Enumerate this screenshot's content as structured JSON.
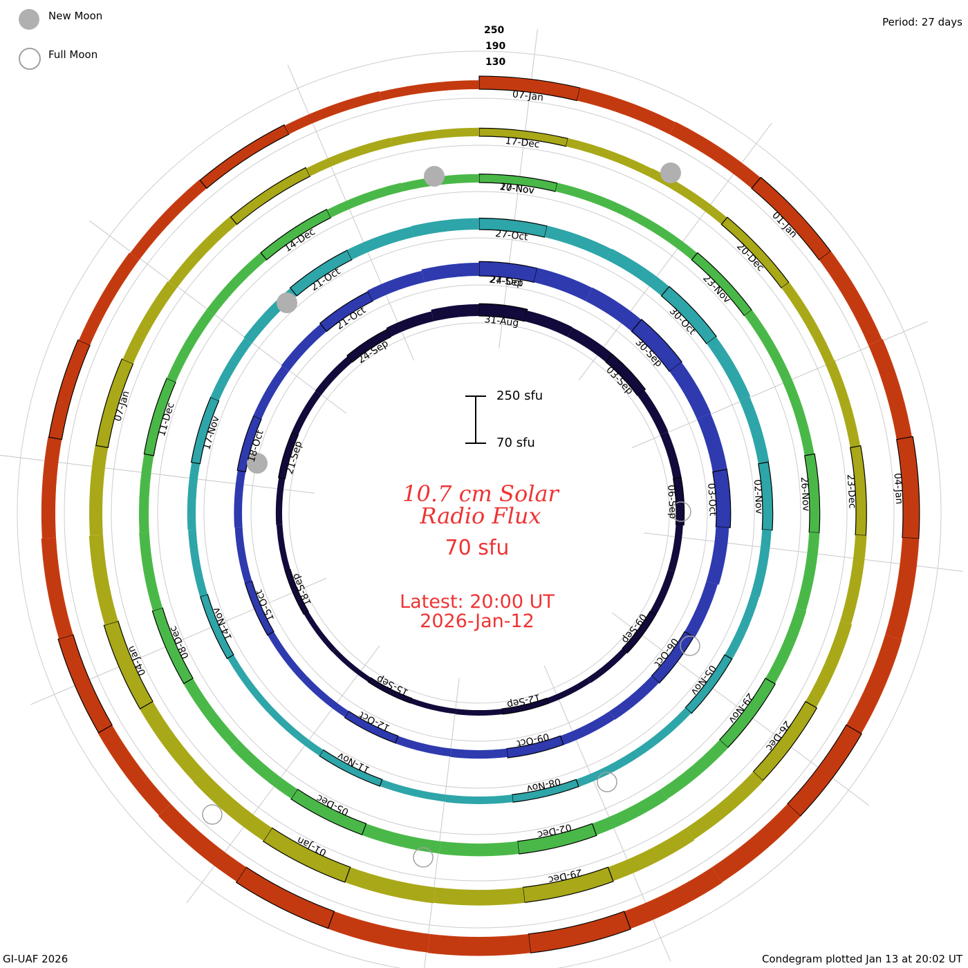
{
  "legend": {
    "new_moon": "New Moon",
    "full_moon": "Full Moon"
  },
  "period_label": "Period: 27 days",
  "ring_scale_labels": [
    "250",
    "190",
    "130"
  ],
  "scale_bar": {
    "top": "250 sfu",
    "bottom": "70 sfu"
  },
  "title": {
    "line1": "10.7 cm Solar",
    "line2": "Radio Flux"
  },
  "current_value": "70 sfu",
  "latest": {
    "line1": "Latest: 20:00 UT",
    "line2": "2026-Jan-12"
  },
  "footer_left": "GI-UAF 2026",
  "footer_right": "Condegram plotted Jan 13 at 20:02 UT",
  "colors": {
    "title_red": "#ee3333",
    "new_moon": "#b0b0b0",
    "full_moon_outline": "#a0a0a0"
  },
  "chart_data": {
    "type": "condegram",
    "period_days": 27,
    "scale_min_sfu": 70,
    "scale_max_sfu": 250,
    "rings": [
      {
        "color": "#120a3a",
        "start": "2025-Aug-31",
        "labels": [
          "31-Aug",
          "03-Sep",
          "06-Sep",
          "09-Sep",
          "12-Sep",
          "15-Sep",
          "18-Sep",
          "21-Sep",
          "24-Sep"
        ],
        "values": [
          128,
          122,
          120,
          118,
          112,
          110,
          108,
          104,
          104,
          102,
          100,
          98,
          96,
          96,
          95,
          94,
          94,
          95,
          96,
          98,
          100,
          102,
          104,
          106,
          110,
          118,
          126
        ]
      },
      {
        "color": "#2e3aae",
        "start": "2025-Sep-27",
        "labels": [
          "27-Sep",
          "30-Sep",
          "03-Oct",
          "06-Oct",
          "09-Oct",
          "12-Oct",
          "15-Oct",
          "18-Oct",
          "21-Oct",
          "24-Oct"
        ],
        "values": [
          138,
          140,
          142,
          144,
          142,
          140,
          138,
          132,
          126,
          120,
          118,
          116,
          114,
          110,
          108,
          106,
          104,
          104,
          104,
          106,
          108,
          110,
          112,
          116,
          120,
          126,
          132
        ]
      },
      {
        "color": "#2ea5a8",
        "start": "2025-Oct-24",
        "labels": [
          "27-Oct",
          "30-Oct",
          "02-Nov",
          "05-Nov",
          "08-Nov",
          "11-Nov",
          "14-Nov",
          "17-Nov",
          "21-Oct"
        ],
        "values": [
          124,
          126,
          128,
          128,
          126,
          122,
          118,
          114,
          112,
          110,
          108,
          108,
          106,
          106,
          104,
          104,
          104,
          104,
          106,
          108,
          110,
          112,
          114,
          118,
          120,
          122,
          124
        ]
      },
      {
        "color": "#4ab848",
        "start": "2025-Nov-20",
        "labels": [
          "20-Nov",
          "23-Nov",
          "26-Nov",
          "29-Nov",
          "02-Dec",
          "05-Dec",
          "08-Dec",
          "11-Dec",
          "14-Dec",
          "17-Nov"
        ],
        "values": [
          110,
          112,
          112,
          114,
          116,
          116,
          118,
          120,
          122,
          124,
          126,
          128,
          130,
          130,
          128,
          126,
          124,
          122,
          120,
          118,
          116,
          116,
          116,
          116,
          114,
          112,
          110
        ]
      },
      {
        "color": "#a9a818",
        "start": "2025-Dec-17",
        "labels": [
          "17-Dec",
          "20-Dec",
          "23-Dec",
          "26-Dec",
          "29-Dec",
          "01-Jan",
          "04-Jan",
          "07-Jan"
        ],
        "values": [
          108,
          110,
          112,
          114,
          116,
          118,
          120,
          124,
          128,
          132,
          136,
          140,
          142,
          144,
          146,
          146,
          144,
          142,
          140,
          136,
          132,
          128,
          124,
          120,
          116,
          112,
          110
        ]
      },
      {
        "color": "#c43a10",
        "start": "2026-Jan-13",
        "labels": [
          "07-Jan",
          "01-Jan",
          "04-Jan"
        ],
        "values": [
          132,
          134,
          136,
          138,
          140,
          144,
          148,
          150,
          152,
          154,
          156,
          158,
          160,
          160,
          158,
          156,
          152,
          148,
          144,
          140,
          136,
          132,
          128,
          124,
          120,
          116,
          112
        ]
      }
    ],
    "new_moons": [
      "2025-Sep-21",
      "2025-Oct-21",
      "2025-Nov-20",
      "2025-Dec-20"
    ],
    "full_moons": [
      "2025-Sep-07",
      "2025-Oct-07",
      "2025-Nov-05",
      "2025-Dec-05",
      "2026-Jan-03"
    ]
  }
}
